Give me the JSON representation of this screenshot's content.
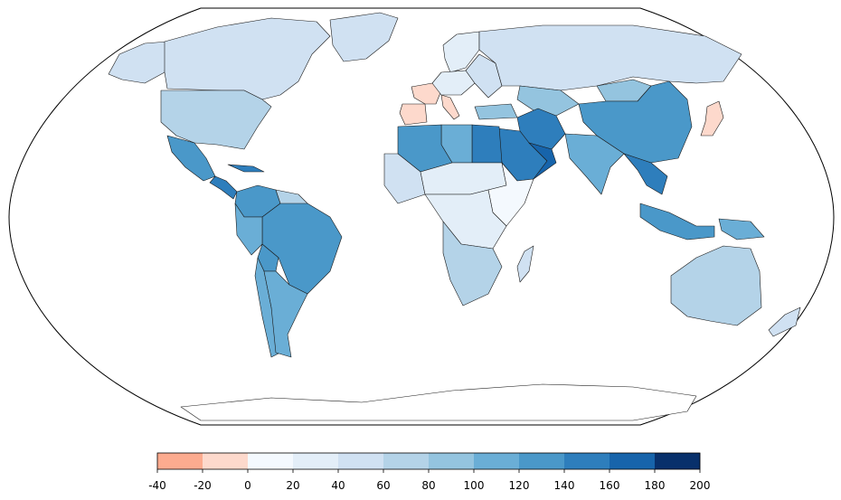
{
  "map": {
    "projection": "Robinson",
    "missing_color": "#ffffff",
    "colorbar": {
      "ticks": [
        "-40",
        "-20",
        "0",
        "20",
        "40",
        "60",
        "80",
        "100",
        "120",
        "140",
        "160",
        "180",
        "200"
      ],
      "colors": [
        "#fcab8f",
        "#fdd9cc",
        "#f4f9fe",
        "#e3eef8",
        "#d0e1f2",
        "#b4d3e8",
        "#94c4df",
        "#6aaed6",
        "#4a98c9",
        "#2e7ebc",
        "#1764ab",
        "#08306b"
      ]
    },
    "regions": [
      {
        "name": "Canada",
        "bin": 4
      },
      {
        "name": "Alaska",
        "bin": 4
      },
      {
        "name": "Greenland",
        "bin": 4
      },
      {
        "name": "United States",
        "bin": 5
      },
      {
        "name": "Mexico",
        "bin": 8
      },
      {
        "name": "Central America",
        "bin": 9
      },
      {
        "name": "Cuba",
        "bin": 9
      },
      {
        "name": "Colombia/Venezuela",
        "bin": 8
      },
      {
        "name": "Guianas",
        "bin": 5
      },
      {
        "name": "Brazil",
        "bin": 8
      },
      {
        "name": "Peru",
        "bin": 7
      },
      {
        "name": "Bolivia",
        "bin": 8
      },
      {
        "name": "Chile",
        "bin": 7
      },
      {
        "name": "Argentina",
        "bin": 7
      },
      {
        "name": "France",
        "bin": 1
      },
      {
        "name": "Iberia",
        "bin": 1
      },
      {
        "name": "Italy",
        "bin": 1
      },
      {
        "name": "Scandinavia",
        "bin": 3
      },
      {
        "name": "Central Europe",
        "bin": 3
      },
      {
        "name": "Eastern Europe",
        "bin": 4
      },
      {
        "name": "Russia",
        "bin": 4
      },
      {
        "name": "Turkey",
        "bin": 6
      },
      {
        "name": "Iran",
        "bin": 9
      },
      {
        "name": "Saudi Arabia",
        "bin": 9
      },
      {
        "name": "Oman/Yemen",
        "bin": 10
      },
      {
        "name": "Egypt",
        "bin": 9
      },
      {
        "name": "Libya",
        "bin": 7
      },
      {
        "name": "Algeria",
        "bin": 8
      },
      {
        "name": "West Africa",
        "bin": 4
      },
      {
        "name": "Sahel",
        "bin": 3
      },
      {
        "name": "East Africa",
        "bin": 2
      },
      {
        "name": "Central Africa",
        "bin": 3
      },
      {
        "name": "Southern Africa",
        "bin": 5
      },
      {
        "name": "Madagascar",
        "bin": 4
      },
      {
        "name": "Kazakhstan",
        "bin": 6
      },
      {
        "name": "Mongolia",
        "bin": 6
      },
      {
        "name": "China",
        "bin": 8
      },
      {
        "name": "India",
        "bin": 7
      },
      {
        "name": "Southeast Asia",
        "bin": 9
      },
      {
        "name": "Japan",
        "bin": 1
      },
      {
        "name": "Indonesia",
        "bin": 8
      },
      {
        "name": "Papua",
        "bin": 7
      },
      {
        "name": "Australia",
        "bin": 5
      },
      {
        "name": "New Zealand",
        "bin": 4
      },
      {
        "name": "Antarctica",
        "bin": -1
      }
    ]
  }
}
